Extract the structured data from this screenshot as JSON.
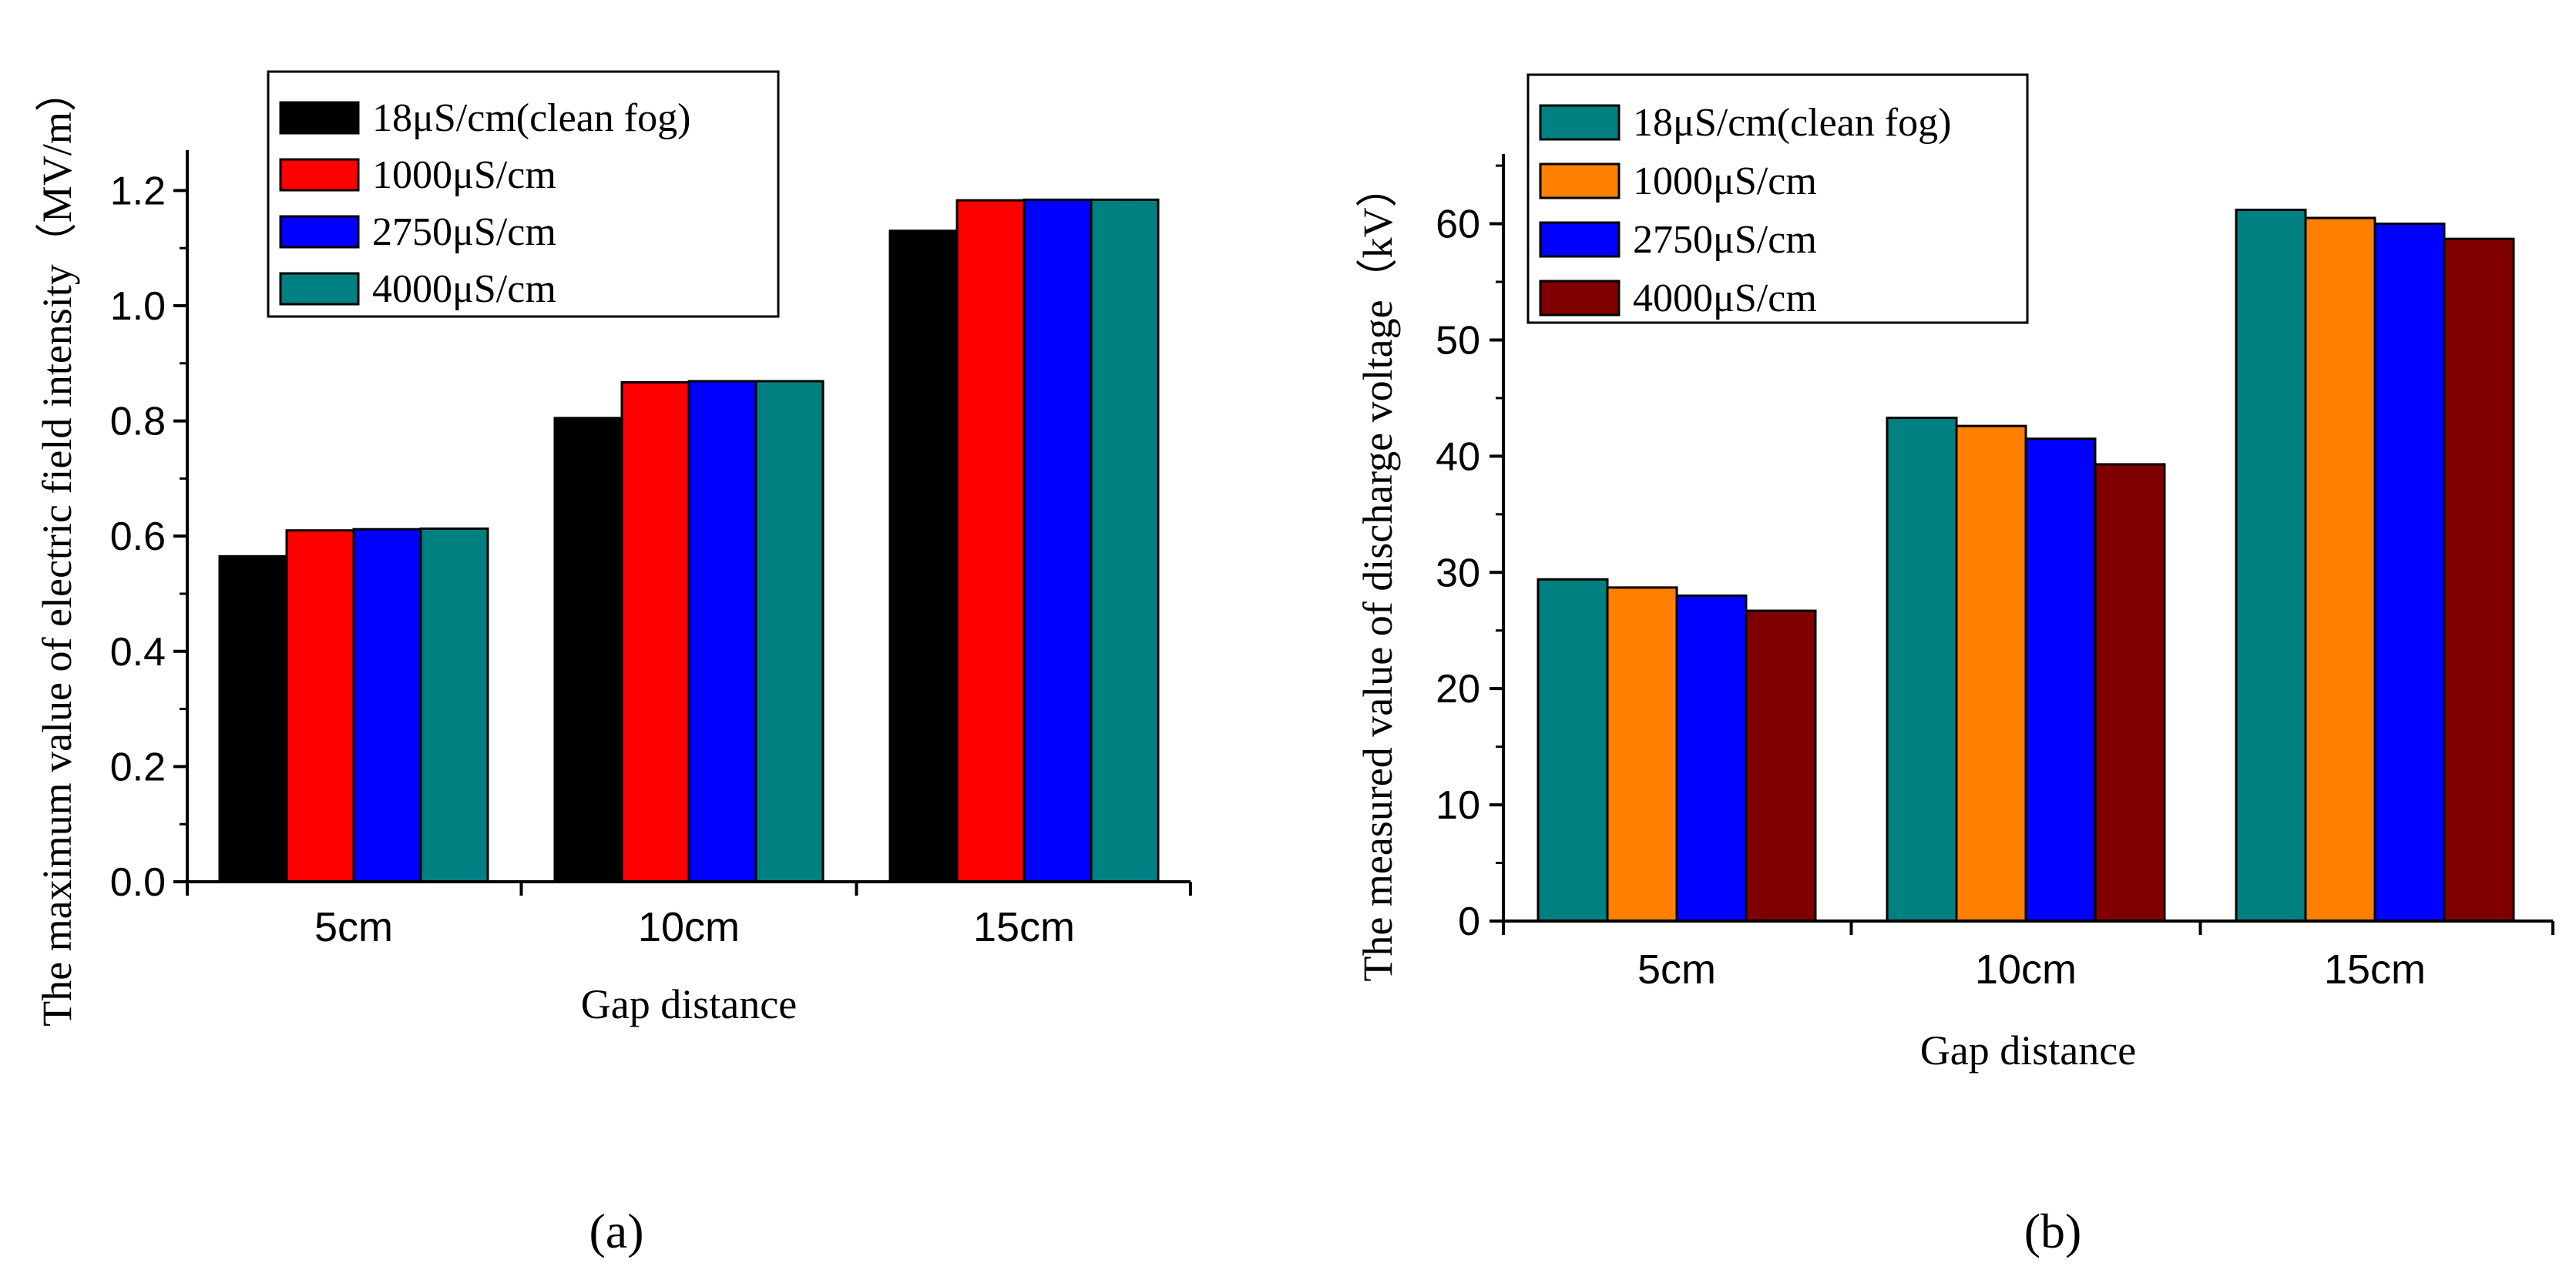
{
  "chart_data": [
    {
      "panel": "a",
      "panel_label": "(a)",
      "type": "bar",
      "title": "",
      "xlabel": "Gap distance",
      "ylabel": "The maximum value of electric field intensity（MV/m）",
      "categories": [
        "5cm",
        "10cm",
        "15cm"
      ],
      "ylim": [
        0,
        1.27
      ],
      "yticks": [
        0.0,
        0.2,
        0.4,
        0.6,
        0.8,
        1.0,
        1.2
      ],
      "ytick_labels": [
        "0.0",
        "0.2",
        "0.4",
        "0.6",
        "0.8",
        "1.0",
        "1.2"
      ],
      "legend_position": "top-left",
      "series": [
        {
          "name": "18μS/cm(clean fog)",
          "color": "#000000",
          "values": [
            0.565,
            0.805,
            1.13
          ]
        },
        {
          "name": "1000μS/cm",
          "color": "#ff0000",
          "values": [
            0.61,
            0.867,
            1.183
          ]
        },
        {
          "name": "2750μS/cm",
          "color": "#0000ff",
          "values": [
            0.612,
            0.869,
            1.184
          ]
        },
        {
          "name": "4000μS/cm",
          "color": "#008080",
          "values": [
            0.613,
            0.869,
            1.184
          ]
        }
      ]
    },
    {
      "panel": "b",
      "panel_label": "(b)",
      "type": "bar",
      "title": "",
      "xlabel": "Gap distance",
      "ylabel": "The measured value of discharge voltage（kV）",
      "categories": [
        "5cm",
        "10cm",
        "15cm"
      ],
      "ylim": [
        0,
        66
      ],
      "yticks": [
        0,
        10,
        20,
        30,
        40,
        50,
        60
      ],
      "ytick_labels": [
        "0",
        "10",
        "20",
        "30",
        "40",
        "50",
        "60"
      ],
      "legend_position": "top-left",
      "series": [
        {
          "name": "18μS/cm(clean fog)",
          "color": "#008080",
          "values": [
            29.4,
            43.3,
            61.2
          ]
        },
        {
          "name": "1000μS/cm",
          "color": "#ff8000",
          "values": [
            28.7,
            42.6,
            60.5
          ]
        },
        {
          "name": "2750μS/cm",
          "color": "#0000ff",
          "values": [
            28.0,
            41.5,
            60.0
          ]
        },
        {
          "name": "4000μS/cm",
          "color": "#800000",
          "values": [
            26.7,
            39.3,
            58.7
          ]
        }
      ]
    }
  ]
}
